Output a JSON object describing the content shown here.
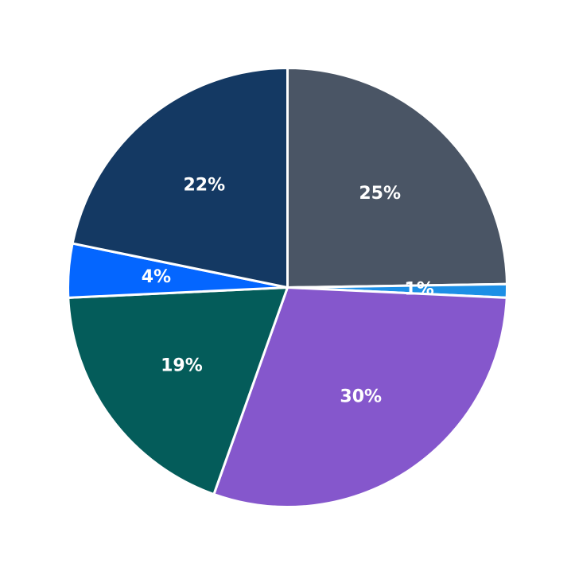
{
  "chart_data": {
    "type": "pie",
    "start_angle": "12 o'clock",
    "direction": "clockwise",
    "slices": [
      {
        "label": "25%",
        "value": 25,
        "color": "#4a5565"
      },
      {
        "label": "1%",
        "value": 1,
        "color": "#1d8fe6"
      },
      {
        "label": "30%",
        "value": 30,
        "color": "#8557cc"
      },
      {
        "label": "19%",
        "value": 19,
        "color": "#045c5a"
      },
      {
        "label": "4%",
        "value": 4,
        "color": "#0466ff"
      },
      {
        "label": "22%",
        "value": 22,
        "color": "#143963"
      }
    ]
  }
}
